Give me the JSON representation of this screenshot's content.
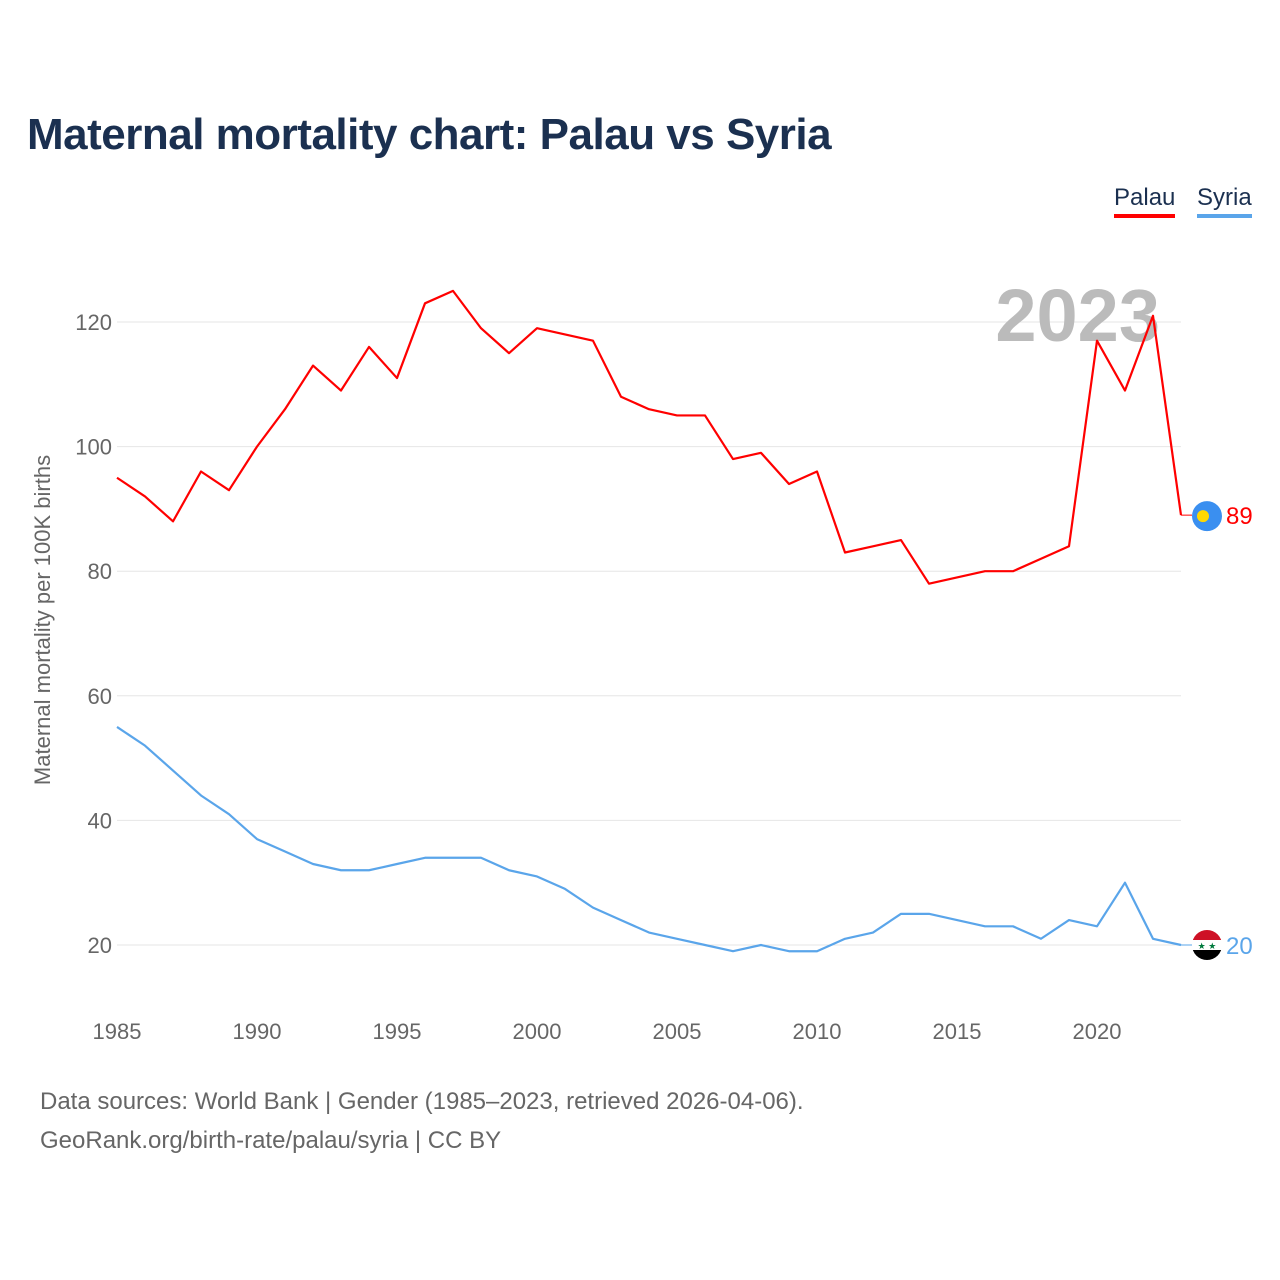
{
  "chart_data": {
    "type": "line",
    "title": "Maternal mortality chart: Palau vs Syria",
    "ylabel": "Maternal mortality per 100K births",
    "xlabel": "",
    "year_label": "2023",
    "ylim": [
      10,
      130
    ],
    "xlim": [
      1985,
      2023
    ],
    "yticks": [
      20,
      40,
      60,
      80,
      100,
      120
    ],
    "xticks": [
      1985,
      1990,
      1995,
      2000,
      2005,
      2010,
      2015,
      2020
    ],
    "grid": true,
    "legend_position": "top-right",
    "x": [
      1985,
      1986,
      1987,
      1988,
      1989,
      1990,
      1991,
      1992,
      1993,
      1994,
      1995,
      1996,
      1997,
      1998,
      1999,
      2000,
      2001,
      2002,
      2003,
      2004,
      2005,
      2006,
      2007,
      2008,
      2009,
      2010,
      2011,
      2012,
      2013,
      2014,
      2015,
      2016,
      2017,
      2018,
      2019,
      2020,
      2021,
      2022,
      2023
    ],
    "series": [
      {
        "name": "Palau",
        "color": "#ff0000",
        "end_label": "89",
        "values": [
          95,
          92,
          88,
          96,
          93,
          100,
          106,
          113,
          109,
          116,
          111,
          123,
          125,
          119,
          115,
          119,
          118,
          117,
          108,
          106,
          105,
          105,
          98,
          99,
          94,
          96,
          83,
          84,
          85,
          78,
          79,
          80,
          80,
          82,
          84,
          117,
          109,
          121,
          89
        ]
      },
      {
        "name": "Syria",
        "color": "#5aa5ea",
        "end_label": "20",
        "values": [
          55,
          52,
          48,
          44,
          41,
          37,
          35,
          33,
          32,
          32,
          33,
          34,
          34,
          34,
          32,
          31,
          29,
          26,
          24,
          22,
          21,
          20,
          19,
          20,
          19,
          19,
          21,
          22,
          25,
          25,
          24,
          23,
          23,
          21,
          24,
          23,
          30,
          21,
          20
        ]
      }
    ]
  },
  "footer": {
    "line1": "Data sources: World Bank | Gender (1985–2023, retrieved 2026-04-06).",
    "line2": "GeoRank.org/birth-rate/palau/syria | CC BY"
  }
}
